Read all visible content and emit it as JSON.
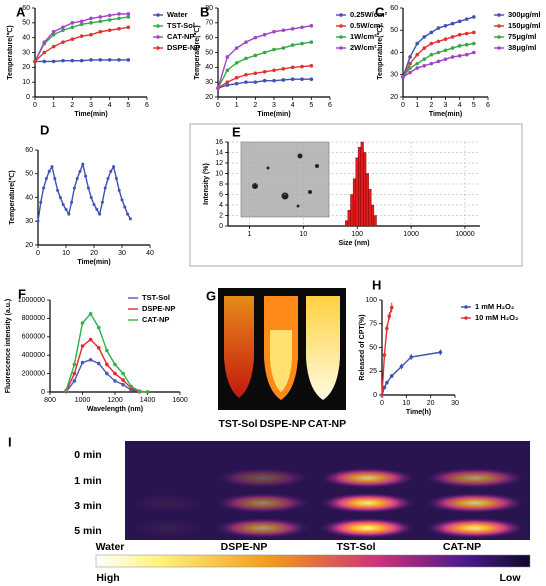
{
  "chart_data": [
    {
      "type": "line",
      "panel": "A",
      "x_label": "Time(min)",
      "y_label": "Temperature(℃)",
      "x": [
        0,
        0.5,
        1,
        1.5,
        2,
        2.5,
        3,
        3.5,
        4,
        4.5,
        5
      ],
      "series": [
        {
          "name": "Water",
          "color": "#3f51b5",
          "values": [
            24,
            24,
            24,
            24.5,
            24.5,
            24.5,
            25,
            25,
            25,
            25,
            25
          ]
        },
        {
          "name": "TST-Sol",
          "color": "#35a845",
          "values": [
            24,
            36,
            42,
            45,
            47,
            49,
            50,
            51,
            52,
            53,
            54
          ]
        },
        {
          "name": "CAT-NP",
          "color": "#a044c8",
          "values": [
            24,
            37,
            44,
            47,
            50,
            51,
            53,
            54,
            55,
            56,
            56
          ]
        },
        {
          "name": "DSPE-NP",
          "color": "#e03131",
          "values": [
            24,
            30,
            34,
            37,
            39,
            41,
            42,
            44,
            45,
            46,
            47
          ]
        }
      ],
      "xlim": [
        0,
        6
      ],
      "xticks": [
        0,
        1,
        2,
        3,
        4,
        5,
        6
      ],
      "ylim": [
        0,
        60
      ],
      "yticks": [
        0,
        10,
        20,
        30,
        40,
        50,
        60
      ],
      "legend": "right"
    },
    {
      "type": "line",
      "panel": "B",
      "x_label": "Time(min)",
      "y_label": "Temperature(℃)",
      "x": [
        0,
        0.5,
        1,
        1.5,
        2,
        2.5,
        3,
        3.5,
        4,
        4.5,
        5
      ],
      "series": [
        {
          "name": "0.25W/cm²",
          "color": "#3f51b5",
          "values": [
            26,
            28,
            29,
            30,
            30,
            31,
            31,
            31.5,
            32,
            32,
            32
          ]
        },
        {
          "name": "0.5W/cm²",
          "color": "#e03131",
          "values": [
            26,
            30,
            33,
            35,
            36,
            37,
            38,
            39,
            40,
            40.5,
            41
          ]
        },
        {
          "name": "1W/cm²",
          "color": "#35a845",
          "values": [
            26,
            38,
            43,
            46,
            48,
            50,
            52,
            53,
            55,
            56,
            57
          ]
        },
        {
          "name": "2W/cm²",
          "color": "#a044c8",
          "values": [
            26,
            47,
            53,
            57,
            60,
            62,
            64,
            65,
            66,
            67,
            68
          ]
        }
      ],
      "xlim": [
        0,
        6
      ],
      "xticks": [
        0,
        1,
        2,
        3,
        4,
        5,
        6
      ],
      "ylim": [
        20,
        80
      ],
      "yticks": [
        20,
        30,
        40,
        50,
        60,
        70,
        80
      ],
      "legend": "right"
    },
    {
      "type": "line",
      "panel": "C",
      "x_label": "Time(min)",
      "y_label": "Temperature(℃)",
      "x": [
        0,
        0.5,
        1,
        1.5,
        2,
        2.5,
        3,
        3.5,
        4,
        4.5,
        5
      ],
      "series": [
        {
          "name": "300μg/ml",
          "color": "#3f51b5",
          "values": [
            29,
            38,
            44,
            47,
            49,
            51,
            52,
            53,
            54,
            55,
            56
          ]
        },
        {
          "name": "150μg/ml",
          "color": "#e03131",
          "values": [
            29,
            35,
            39,
            42,
            44,
            45,
            46,
            47,
            48,
            48.5,
            49
          ]
        },
        {
          "name": "75μg/ml",
          "color": "#35a845",
          "values": [
            29,
            33,
            35,
            37,
            39,
            40,
            41,
            42,
            43,
            43.5,
            44
          ]
        },
        {
          "name": "38μg/ml",
          "color": "#a044c8",
          "values": [
            29,
            31,
            33,
            34,
            35,
            36,
            37,
            38,
            38.5,
            39,
            40
          ]
        }
      ],
      "xlim": [
        0,
        6
      ],
      "xticks": [
        0,
        1,
        2,
        3,
        4,
        5,
        6
      ],
      "ylim": [
        20,
        60
      ],
      "yticks": [
        20,
        30,
        40,
        50,
        60
      ],
      "legend": "right"
    },
    {
      "type": "line",
      "panel": "D",
      "x_label": "Time(min)",
      "y_label": "Temperature(℃)",
      "x": [
        0,
        1,
        2,
        3,
        4,
        5,
        6,
        7,
        8,
        9,
        10,
        11,
        12,
        13,
        14,
        15,
        16,
        17,
        18,
        19,
        20,
        21,
        22,
        23,
        24,
        25,
        26,
        27,
        28,
        29,
        30,
        31,
        32,
        33
      ],
      "series": [
        {
          "color": "#3f51b5",
          "values": [
            30,
            38,
            44,
            48,
            51,
            53,
            48,
            43,
            40,
            37,
            35,
            33,
            38,
            44,
            48,
            51,
            54,
            49,
            44,
            40,
            37,
            35,
            33,
            38,
            44,
            48,
            51,
            53,
            48,
            43,
            39,
            36,
            33,
            31
          ]
        }
      ],
      "xlim": [
        0,
        40
      ],
      "xticks": [
        0,
        10,
        20,
        30,
        40
      ],
      "ylim": [
        20,
        60
      ],
      "yticks": [
        20,
        30,
        40,
        50,
        60
      ]
    },
    {
      "type": "histogram",
      "panel": "E",
      "x_label": "Size (nm)",
      "y_label": "Intensity (%)",
      "color": "#e41a1c",
      "bins": [
        60,
        67,
        75,
        84,
        94,
        105,
        117,
        131,
        146,
        163,
        182,
        204,
        228
      ],
      "values": [
        1,
        3,
        6,
        9,
        13,
        15,
        16,
        14,
        10,
        7,
        4,
        2
      ],
      "xscale": "log",
      "xlim": [
        0.4,
        19000
      ],
      "xticks": [
        1,
        10,
        100,
        1000,
        10000
      ],
      "ylim": [
        0,
        16
      ],
      "yticks": [
        0,
        2,
        4,
        6,
        8,
        10,
        12,
        14,
        16
      ],
      "grid": true
    },
    {
      "type": "line",
      "panel": "F",
      "x_label": "Wavelength (nm)",
      "y_label": "Fluorescence intensity (a.u.)",
      "x": [
        900,
        950,
        1000,
        1050,
        1100,
        1150,
        1200,
        1250,
        1300,
        1350,
        1400
      ],
      "series": [
        {
          "name": "TST-Sol",
          "color": "#4a5ab8",
          "values": [
            5000,
            120000,
            320000,
            350000,
            310000,
            200000,
            120000,
            80000,
            20000,
            3000,
            0
          ]
        },
        {
          "name": "DSPE-NP",
          "color": "#e8262b",
          "values": [
            10000,
            200000,
            500000,
            570000,
            480000,
            300000,
            200000,
            130000,
            40000,
            5000,
            0
          ]
        },
        {
          "name": "CAT-NP",
          "color": "#2db34a",
          "values": [
            20000,
            300000,
            750000,
            850000,
            700000,
            450000,
            300000,
            200000,
            60000,
            10000,
            0
          ]
        }
      ],
      "xlim": [
        800,
        1600
      ],
      "xticks": [
        800,
        1000,
        1200,
        1400,
        1600
      ],
      "ylim": [
        0,
        1000000
      ],
      "yticks": [
        0,
        200000,
        400000,
        600000,
        800000,
        1000000
      ],
      "legend": "upper-right"
    },
    {
      "type": "line",
      "panel": "H",
      "x_label": "Time(h)",
      "y_label": "Released of CPT(%)",
      "series": [
        {
          "name": "1 mM H₂O₂",
          "color": "#3f51b5",
          "x": [
            0,
            1,
            2,
            4,
            8,
            12,
            24
          ],
          "values": [
            0,
            8,
            13,
            20,
            30,
            40,
            45
          ],
          "errors": [
            0,
            1,
            2,
            2,
            3,
            3,
            3
          ]
        },
        {
          "name": "10 mM H₂O₂",
          "color": "#e03131",
          "x": [
            0,
            1,
            2,
            3,
            4
          ],
          "values": [
            0,
            42,
            70,
            83,
            92
          ],
          "errors": [
            0,
            3,
            4,
            4,
            5
          ]
        }
      ],
      "xlim": [
        0,
        30
      ],
      "xticks": [
        0,
        10,
        20,
        30
      ],
      "ylim": [
        0,
        100
      ],
      "yticks": [
        0,
        25,
        50,
        75,
        100
      ],
      "legend": "right"
    }
  ],
  "image_panels": {
    "G": {
      "panel": "G",
      "labels": [
        "TST-Sol",
        "DSPE-NP",
        "CAT-NP"
      ]
    },
    "I": {
      "panel": "I",
      "rows": [
        "0 min",
        "1 min",
        "3 min",
        "5 min"
      ],
      "columns": [
        "Water",
        "DSPE-NP",
        "TST-Sol",
        "CAT-NP"
      ],
      "scale_high": "High",
      "scale_low": "Low"
    }
  }
}
